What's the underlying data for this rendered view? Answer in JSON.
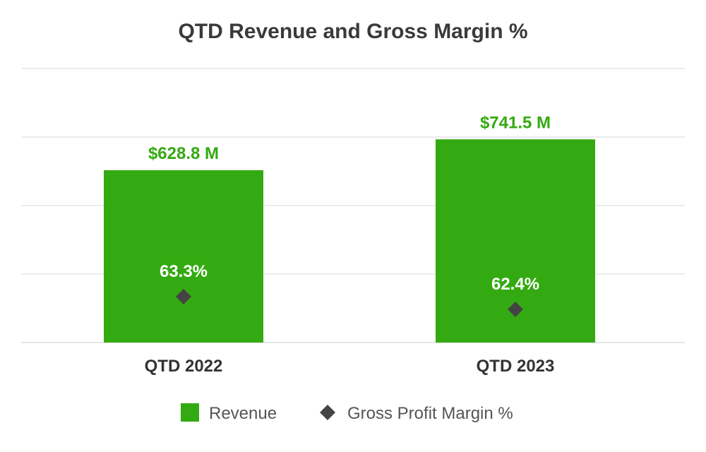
{
  "chart_data": {
    "type": "bar",
    "title": "QTD Revenue and Gross Margin %",
    "categories": [
      "QTD 2022",
      "QTD 2023"
    ],
    "series": [
      {
        "name": "Revenue",
        "kind": "bar",
        "values": [
          628.8,
          741.5
        ],
        "value_labels": [
          "$628.8 M",
          "$741.5 M"
        ],
        "color": "#33aa11"
      },
      {
        "name": "Gross Profit Margin %",
        "kind": "marker",
        "marker": "diamond",
        "values": [
          63.3,
          62.4
        ],
        "value_labels": [
          "63.3%",
          "62.4%"
        ],
        "color": "#444444"
      }
    ],
    "xlabel": "",
    "ylabel": "",
    "ylim": [
      0,
      1000
    ],
    "grid": true,
    "legend": "bottom",
    "colors": {
      "bar": "#33aa11",
      "bar_label": "#33aa11",
      "marker": "#444444",
      "grid": "#e6e6e6"
    }
  }
}
